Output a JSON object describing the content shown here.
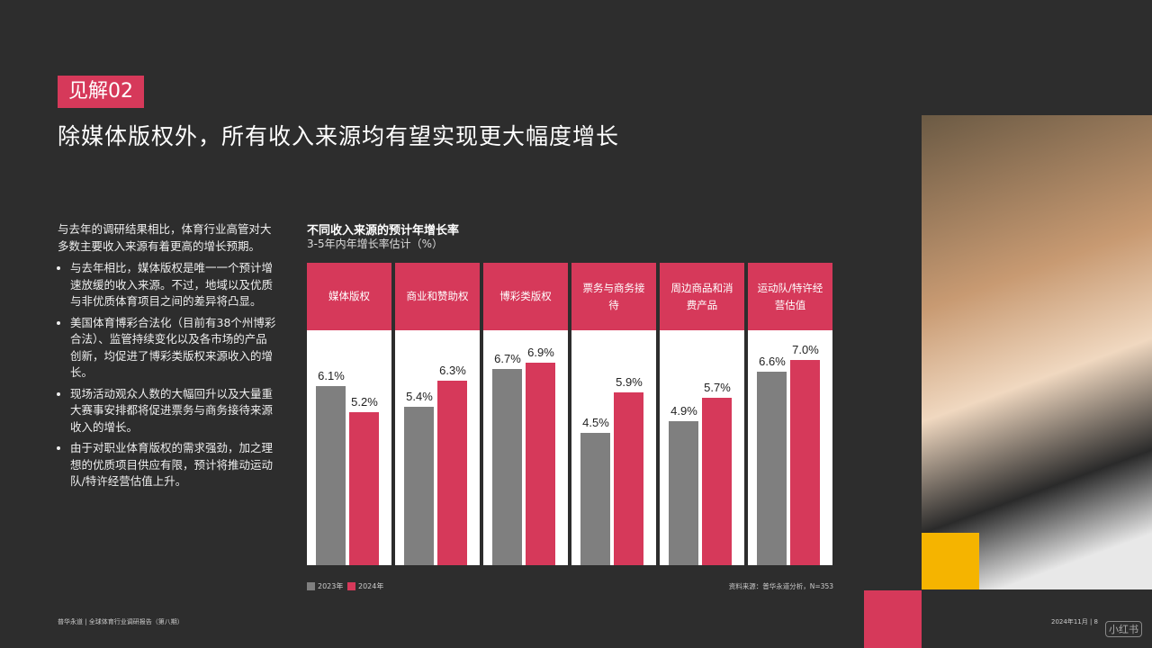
{
  "tag": "见解02",
  "title": "除媒体版权外，所有收入来源均有望实现更大幅度增长",
  "intro": "与去年的调研结果相比，体育行业高管对大多数主要收入来源有着更高的增长预期。",
  "bullets": [
    "与去年相比，媒体版权是唯一一个预计增速放缓的收入来源。不过，地域以及优质与非优质体育项目之间的差异将凸显。",
    "美国体育博彩合法化（目前有38个州博彩合法）、监管持续变化以及各市场的产品创新，均促进了博彩类版权来源收入的增长。",
    "现场活动观众人数的大幅回升以及大量重大赛事安排都将促进票务与商务接待来源收入的增长。",
    "由于对职业体育版权的需求强劲，加之理想的优质项目供应有限，预计将推动运动队/特许经营估值上升。"
  ],
  "chart_data": {
    "type": "bar",
    "title": "不同收入来源的预计年增长率",
    "subtitle": "3-5年内年增长率估计（%）",
    "categories": [
      "媒体版权",
      "商业和赞助权",
      "博彩类版权",
      "票务与商务接待",
      "周边商品和消费产品",
      "运动队/特许经营估值"
    ],
    "series": [
      {
        "name": "2023年",
        "color": "#7f7f7f",
        "values": [
          6.1,
          5.4,
          6.7,
          4.5,
          4.9,
          6.6
        ],
        "value_labels": [
          "6.1%",
          "5.4%",
          "6.7%",
          "4.5%",
          "4.9%",
          "6.6%"
        ]
      },
      {
        "name": "2024年",
        "color": "#d6395a",
        "values": [
          5.2,
          6.3,
          6.9,
          5.9,
          5.7,
          7.0
        ],
        "value_labels": [
          "5.2%",
          "6.3%",
          "6.9%",
          "5.9%",
          "5.7%",
          "7.0%"
        ]
      }
    ],
    "source": "资料来源：普华永道分析，N=353"
  },
  "footer": {
    "left": "普华永道 | 全球体育行业调研报告（第八期）",
    "right": "2024年11月 | 8"
  },
  "watermark": "小红书"
}
